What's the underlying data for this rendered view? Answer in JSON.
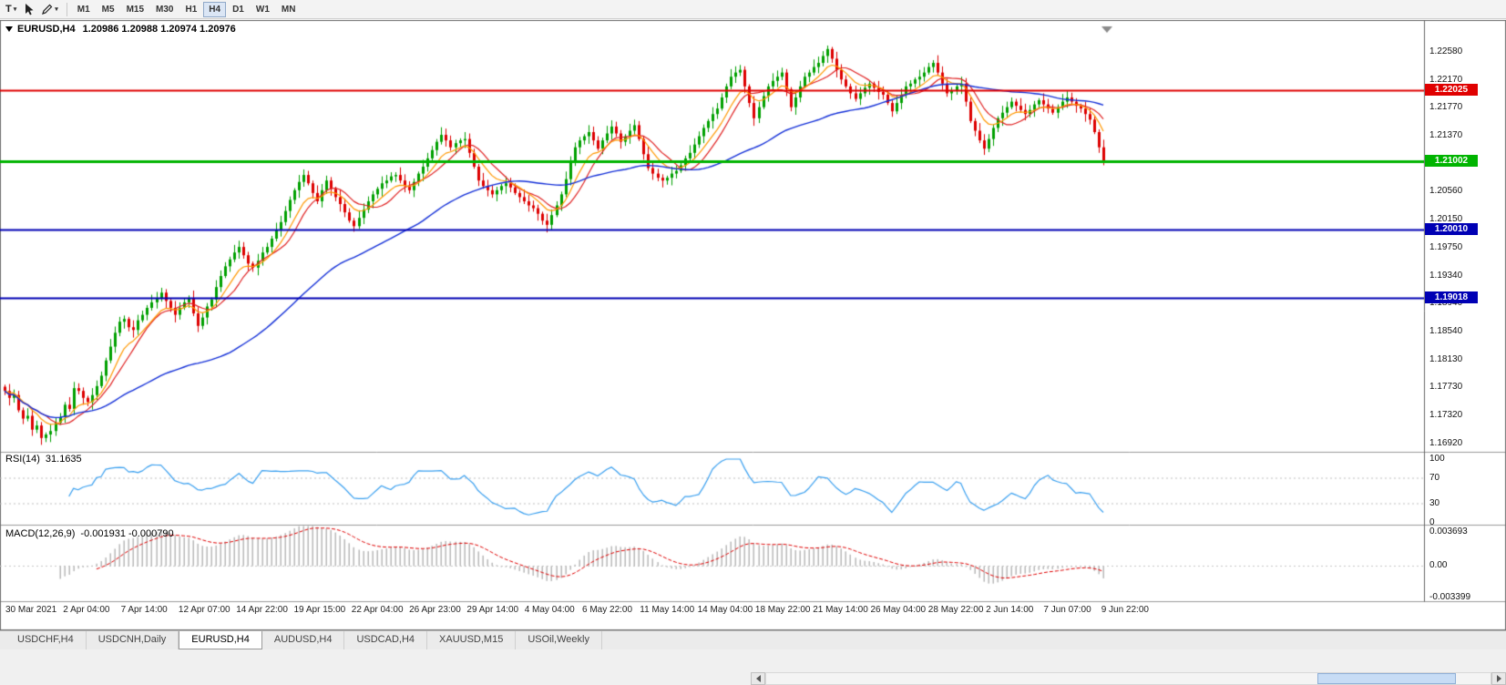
{
  "toolbar": {
    "text_tool_label": "T",
    "timeframes": [
      "M1",
      "M5",
      "M15",
      "M30",
      "H1",
      "H4",
      "D1",
      "W1",
      "MN"
    ],
    "active_timeframe": "H4"
  },
  "chart": {
    "title_symbol": "EURUSD,H4",
    "title_ohlc": "1.20986 1.20988 1.20974 1.20976"
  },
  "chart_data": {
    "type": "candlestick",
    "symbol": "EURUSD",
    "timeframe": "H4",
    "y_axis": {
      "visible_range": [
        1.168,
        1.2296
      ],
      "ticks": [
        "1.22580",
        "1.22170",
        "1.21770",
        "1.21370",
        "1.20960",
        "1.20560",
        "1.20150",
        "1.19750",
        "1.19340",
        "1.18940",
        "1.18540",
        "1.18130",
        "1.17730",
        "1.17320",
        "1.16920"
      ]
    },
    "x_tick_labels": [
      "30 Mar 2021",
      "2 Apr 04:00",
      "7 Apr 14:00",
      "12 Apr 07:00",
      "14 Apr 22:00",
      "19 Apr 15:00",
      "22 Apr 04:00",
      "26 Apr 23:00",
      "29 Apr 14:00",
      "4 May 04:00",
      "6 May 22:00",
      "11 May 14:00",
      "14 May 04:00",
      "18 May 22:00",
      "21 May 14:00",
      "26 May 04:00",
      "28 May 22:00",
      "2 Jun 14:00",
      "7 Jun 07:00",
      "9 Jun 22:00"
    ],
    "candles": {
      "base": 1.0,
      "pip": 0.0001,
      "wick_base_pips": 3,
      "wick_var_pips": 9,
      "closes_pips": [
        1768,
        1758,
        1762,
        1740,
        1728,
        1732,
        1712,
        1718,
        1700,
        1705,
        1710,
        1722,
        1730,
        1748,
        1742,
        1772,
        1768,
        1758,
        1752,
        1762,
        1775,
        1790,
        1812,
        1832,
        1852,
        1868,
        1872,
        1860,
        1856,
        1870,
        1878,
        1888,
        1896,
        1902,
        1910,
        1898,
        1888,
        1878,
        1888,
        1896,
        1902,
        1880,
        1862,
        1874,
        1890,
        1900,
        1918,
        1934,
        1948,
        1958,
        1968,
        1976,
        1964,
        1952,
        1946,
        1956,
        1968,
        1976,
        1988,
        2000,
        2012,
        2028,
        2044,
        2058,
        2070,
        2080,
        2068,
        2054,
        2042,
        2058,
        2072,
        2060,
        2048,
        2038,
        2026,
        2014,
        2006,
        2018,
        2030,
        2042,
        2052,
        2060,
        2068,
        2072,
        2078,
        2080,
        2072,
        2064,
        2058,
        2070,
        2082,
        2092,
        2104,
        2116,
        2128,
        2138,
        2130,
        2120,
        2126,
        2130,
        2132,
        2112,
        2092,
        2072,
        2064,
        2058,
        2052,
        2058,
        2064,
        2068,
        2062,
        2054,
        2048,
        2042,
        2036,
        2032,
        2024,
        2014,
        2008,
        2022,
        2036,
        2052,
        2074,
        2098,
        2120,
        2130,
        2136,
        2142,
        2130,
        2118,
        2130,
        2140,
        2150,
        2140,
        2128,
        2136,
        2144,
        2152,
        2132,
        2110,
        2090,
        2082,
        2076,
        2072,
        2076,
        2082,
        2086,
        2094,
        2104,
        2112,
        2124,
        2136,
        2148,
        2158,
        2168,
        2176,
        2192,
        2208,
        2222,
        2228,
        2232,
        2208,
        2184,
        2162,
        2178,
        2194,
        2208,
        2216,
        2222,
        2228,
        2204,
        2178,
        2192,
        2208,
        2222,
        2228,
        2236,
        2242,
        2252,
        2262,
        2248,
        2232,
        2218,
        2208,
        2198,
        2190,
        2198,
        2206,
        2212,
        2206,
        2200,
        2196,
        2184,
        2172,
        2184,
        2196,
        2208,
        2212,
        2218,
        2222,
        2228,
        2236,
        2242,
        2228,
        2212,
        2198,
        2202,
        2208,
        2212,
        2186,
        2158,
        2144,
        2130,
        2118,
        2132,
        2148,
        2162,
        2170,
        2178,
        2186,
        2180,
        2174,
        2168,
        2174,
        2182,
        2188,
        2182,
        2176,
        2170,
        2178,
        2186,
        2192,
        2186,
        2180,
        2176,
        2168,
        2160,
        2142,
        2120,
        2098
      ],
      "up_color": "#00a000",
      "down_color": "#dd0000"
    },
    "levels": [
      {
        "price": 1.22025,
        "label": "1.22025",
        "color": "#e00000",
        "width": 2
      },
      {
        "price": 1.21002,
        "label": "1.21002",
        "color": "#00b400",
        "width": 3
      },
      {
        "price": 1.2001,
        "label": "1.20010",
        "color": "#0000b4",
        "width": 2
      },
      {
        "price": 1.19018,
        "label": "1.19018",
        "color": "#0000b4",
        "width": 2
      }
    ],
    "moving_averages": [
      {
        "name": "ma-fast",
        "method": "sma",
        "period": 10,
        "color": "#e02020",
        "width": 1.2
      },
      {
        "name": "ma-mid",
        "method": "ema",
        "period": 8,
        "color": "#ff9800",
        "width": 1.2
      },
      {
        "name": "ma-slow",
        "method": "sma",
        "period": 50,
        "color": "#1430d8",
        "width": 1.4
      }
    ],
    "rsi": {
      "label": "RSI(14)",
      "value_text": "31.1635",
      "period": 14,
      "levels": [
        70,
        30
      ],
      "axis_ticks": [
        "100",
        "70",
        "30",
        "0"
      ],
      "axis_values": [
        100,
        70,
        30,
        0
      ],
      "color": "#3aa0f0"
    },
    "macd": {
      "label": "MACD(12,26,9)",
      "values_text": "-0.001931 -0.000790",
      "fast": 12,
      "slow": 26,
      "signal": 9,
      "axis_ticks": [
        "0.003693",
        "0.00",
        "-0.003399"
      ],
      "axis_values": [
        0.003693,
        0,
        -0.003399
      ],
      "axis_range": [
        0.003693,
        -0.003399
      ],
      "hist_color": "#b4b4b4",
      "signal_color": "#e00000"
    }
  },
  "tabs": {
    "items": [
      "USDCHF,H4",
      "USDCNH,Daily",
      "EURUSD,H4",
      "AUDUSD,H4",
      "USDCAD,H4",
      "XAUUSD,M15",
      "USOil,Weekly"
    ],
    "active": "EURUSD,H4"
  }
}
